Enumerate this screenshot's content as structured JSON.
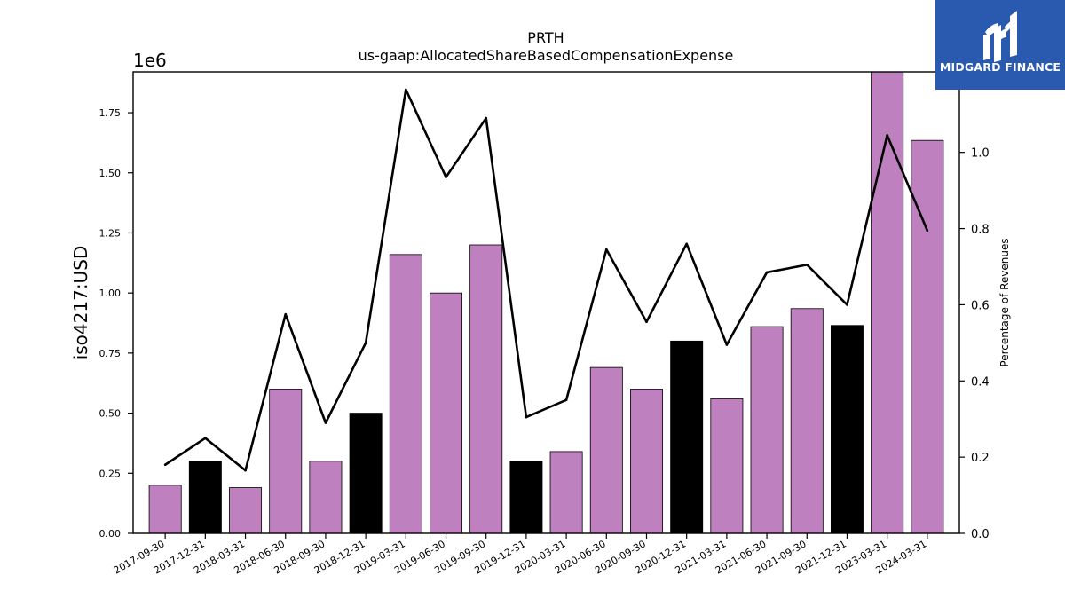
{
  "chart_data": {
    "type": "bar",
    "title": "PRTH",
    "subtitle": "us-gaap:AllocatedShareBasedCompensationExpense",
    "ylabel": "iso4217:USD",
    "y_offset_text": "1e6",
    "y2label": "Percentage of Revenues",
    "categories": [
      "2017-09-30",
      "2017-12-31",
      "2018-03-31",
      "2018-06-30",
      "2018-09-30",
      "2018-12-31",
      "2019-03-31",
      "2019-06-30",
      "2019-09-30",
      "2019-12-31",
      "2020-03-31",
      "2020-06-30",
      "2020-09-30",
      "2020-12-31",
      "2021-03-31",
      "2021-06-30",
      "2021-09-30",
      "2021-12-31",
      "2023-03-31",
      "2024-03-31"
    ],
    "series": [
      {
        "type": "bar",
        "values": [
          200000,
          300000,
          190000,
          600000,
          300000,
          500000,
          1160000,
          1000000,
          1200000,
          300000,
          340000,
          690000,
          600000,
          800000,
          560000,
          860000,
          935000,
          865000,
          1920000,
          1635000
        ],
        "colors": [
          "#bf80bf",
          "#000000",
          "#bf80bf",
          "#bf80bf",
          "#bf80bf",
          "#000000",
          "#bf80bf",
          "#bf80bf",
          "#bf80bf",
          "#000000",
          "#bf80bf",
          "#bf80bf",
          "#bf80bf",
          "#000000",
          "#bf80bf",
          "#bf80bf",
          "#bf80bf",
          "#000000",
          "#bf80bf",
          "#bf80bf"
        ]
      },
      {
        "type": "line",
        "axis": "right",
        "color": "#000000",
        "values": [
          0.18,
          0.25,
          0.165,
          0.575,
          0.29,
          0.5,
          1.165,
          0.935,
          1.09,
          0.305,
          0.35,
          0.745,
          0.555,
          0.76,
          0.495,
          0.685,
          0.705,
          0.6,
          1.045,
          0.795
        ]
      }
    ],
    "ylim": [
      0,
      1920000
    ],
    "y_ticks": [
      "0.00",
      "0.25",
      "0.50",
      "0.75",
      "1.00",
      "1.25",
      "1.50",
      "1.75"
    ],
    "y_tick_values": [
      0,
      250000,
      500000,
      750000,
      1000000,
      1250000,
      1500000,
      1750000
    ],
    "y2lim": [
      0,
      1.2113
    ],
    "y2_ticks": [
      "0.0",
      "0.2",
      "0.4",
      "0.6",
      "0.8",
      "1.0"
    ],
    "y2_tick_values": [
      0,
      0.2,
      0.4,
      0.6,
      0.8,
      1.0
    ],
    "grid": false,
    "legend": "none"
  },
  "logo": {
    "text": "MIDGARD FINANCE",
    "background": "#2a5ab0"
  }
}
